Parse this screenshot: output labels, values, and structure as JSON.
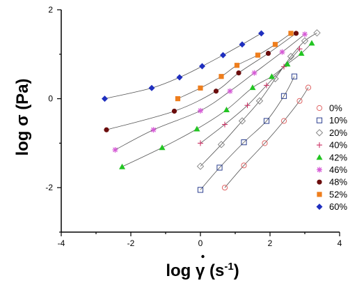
{
  "chart_data": {
    "type": "scatter",
    "xlabel_main": "log ",
    "xlabel_gamma": "γ",
    "xlabel_unit": " (s",
    "xlabel_exp": "-1",
    "xlabel_close": ")",
    "ylabel": "log σ (Pa)",
    "xlim": [
      -4,
      4
    ],
    "ylim": [
      -3,
      2
    ],
    "xticks": [
      -4,
      -2,
      0,
      2,
      4
    ],
    "yticks": [
      -2,
      0,
      2
    ],
    "grid": false,
    "legend_position": "right",
    "series": [
      {
        "name": "0%",
        "marker": "circle-open",
        "color": "#e06666",
        "x": [
          0.7,
          1.25,
          1.85,
          2.4,
          2.85,
          3.1
        ],
        "y": [
          -2.0,
          -1.5,
          -1.0,
          -0.5,
          -0.05,
          0.25
        ]
      },
      {
        "name": "10%",
        "marker": "square-open",
        "color": "#2b3f8f",
        "x": [
          0.0,
          0.55,
          1.25,
          1.9,
          2.4,
          2.7
        ],
        "y": [
          -2.05,
          -1.55,
          -0.98,
          -0.5,
          0.06,
          0.5
        ]
      },
      {
        "name": "20%",
        "marker": "diamond-open",
        "color": "#888888",
        "x": [
          0.0,
          0.6,
          1.2,
          1.7,
          2.15,
          2.6,
          3.0,
          3.35
        ],
        "y": [
          -1.52,
          -1.03,
          -0.5,
          -0.05,
          0.45,
          0.95,
          1.3,
          1.48
        ]
      },
      {
        "name": "40%",
        "marker": "plus",
        "color": "#cc3366",
        "x": [
          0.0,
          0.7,
          1.35,
          1.9,
          2.4,
          2.85
        ],
        "y": [
          -1.0,
          -0.58,
          -0.15,
          0.3,
          0.72,
          1.12
        ]
      },
      {
        "name": "42%",
        "marker": "triangle",
        "color": "#22c522",
        "x": [
          -2.25,
          -1.1,
          -0.1,
          0.75,
          1.5,
          2.05,
          2.5,
          2.9,
          3.2
        ],
        "y": [
          -1.53,
          -1.1,
          -0.68,
          -0.25,
          0.25,
          0.5,
          0.78,
          1.02,
          1.25
        ]
      },
      {
        "name": "46%",
        "marker": "star",
        "color": "#d65bd6",
        "x": [
          -2.45,
          -1.35,
          0.0,
          0.85,
          1.55,
          2.35,
          3.0
        ],
        "y": [
          -1.15,
          -0.7,
          -0.27,
          0.17,
          0.58,
          1.05,
          1.45
        ]
      },
      {
        "name": "48%",
        "marker": "circle",
        "color": "#6b0d0d",
        "x": [
          -2.7,
          -0.75,
          0.45,
          1.1,
          1.95,
          2.75
        ],
        "y": [
          -0.7,
          -0.28,
          0.17,
          0.58,
          1.02,
          1.47
        ]
      },
      {
        "name": "52%",
        "marker": "square",
        "color": "#ee7e1d",
        "x": [
          -0.65,
          0.0,
          0.6,
          1.05,
          1.65,
          2.15,
          2.6
        ],
        "y": [
          0.0,
          0.24,
          0.5,
          0.75,
          0.98,
          1.22,
          1.47
        ]
      },
      {
        "name": "60%",
        "marker": "diamond",
        "color": "#1f2fbf",
        "x": [
          -2.75,
          -1.4,
          -0.6,
          0.05,
          0.65,
          1.2,
          1.75
        ],
        "y": [
          0.0,
          0.24,
          0.48,
          0.73,
          0.98,
          1.22,
          1.47
        ]
      }
    ]
  }
}
